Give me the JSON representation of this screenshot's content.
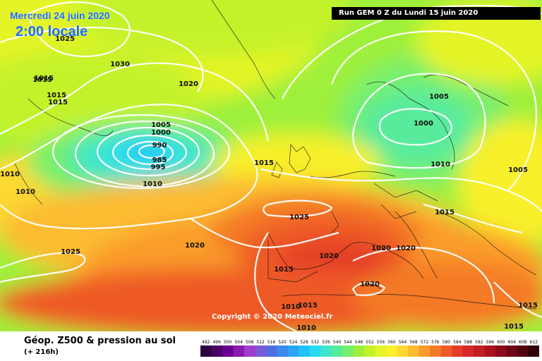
{
  "header": {
    "date": "Mercredi 24 juin 2020",
    "time": "2:00 locale",
    "run": "Run GEM 0 Z du Lundi 15 juin 2020"
  },
  "copyright": "Copyright © 2020 Meteociel.fr",
  "footer": {
    "parameter": "Géop. Z500 & pression au sol",
    "lead": "(+ 216h)"
  },
  "legend": {
    "ticks": [
      "492",
      "496",
      "500",
      "504",
      "508",
      "512",
      "516",
      "520",
      "524",
      "528",
      "532",
      "536",
      "540",
      "544",
      "548",
      "552",
      "556",
      "560",
      "564",
      "568",
      "572",
      "576",
      "580",
      "584",
      "588",
      "592",
      "596",
      "600",
      "604",
      "608",
      "612"
    ],
    "colors": [
      "#2b0040",
      "#4b0066",
      "#6a0090",
      "#8a1ab0",
      "#a13ccc",
      "#7a5ad6",
      "#4f6fe0",
      "#3a8aee",
      "#2aa5f5",
      "#20c2f8",
      "#28dbf0",
      "#3fe6cc",
      "#58eb9c",
      "#78ef6c",
      "#9ef03a",
      "#c4f22a",
      "#e4f428",
      "#f8f02a",
      "#fcd830",
      "#fcbc30",
      "#fa9c2c",
      "#f47a28",
      "#ee5a26",
      "#e43c26",
      "#d62828",
      "#c21e24",
      "#aa1420",
      "#8c0c1c",
      "#6e0616",
      "#500210",
      "#300008"
    ]
  },
  "isobars": [
    {
      "label": "1015",
      "type": "iso-1015"
    },
    {
      "label": "1025",
      "type": "iso-1025"
    },
    {
      "label": "1030",
      "type": "iso-1030"
    },
    {
      "label": "1020",
      "type": "iso-1020"
    },
    {
      "label": "1015",
      "type": "iso-1015"
    },
    {
      "label": "1015",
      "type": "iso-1015"
    },
    {
      "label": "1015",
      "type": "iso-1015"
    },
    {
      "label": "1005",
      "type": "iso-1005"
    },
    {
      "label": "1000",
      "type": "iso-1000"
    },
    {
      "label": "990",
      "type": "iso-990"
    },
    {
      "label": "985",
      "type": "iso-985"
    },
    {
      "label": "995",
      "type": "iso-995"
    },
    {
      "label": "1010",
      "type": "iso-1010"
    },
    {
      "label": "1010",
      "type": "iso-1010"
    },
    {
      "label": "1010",
      "type": "iso-1010"
    },
    {
      "label": "1015",
      "type": "iso-1015"
    },
    {
      "label": "1005",
      "type": "iso-1005"
    },
    {
      "label": "1000",
      "type": "iso-1000"
    },
    {
      "label": "1010",
      "type": "iso-1010"
    },
    {
      "label": "1005",
      "type": "iso-1005"
    },
    {
      "label": "1015",
      "type": "iso-1015"
    },
    {
      "label": "1025",
      "type": "iso-1025"
    },
    {
      "label": "1025",
      "type": "iso-1025"
    },
    {
      "label": "1020",
      "type": "iso-1020"
    },
    {
      "label": "1020",
      "type": "iso-1020"
    },
    {
      "label": "1020",
      "type": "iso-1020"
    },
    {
      "label": "1020",
      "type": "iso-1020"
    },
    {
      "label": "1015",
      "type": "iso-1015"
    },
    {
      "label": "1020",
      "type": "iso-1020"
    },
    {
      "label": "1015",
      "type": "iso-1015"
    },
    {
      "label": "1010",
      "type": "iso-1010"
    },
    {
      "label": "1015",
      "type": "iso-1015"
    },
    {
      "label": "1010",
      "type": "iso-1010"
    },
    {
      "label": "1015",
      "type": "iso-1015"
    }
  ]
}
